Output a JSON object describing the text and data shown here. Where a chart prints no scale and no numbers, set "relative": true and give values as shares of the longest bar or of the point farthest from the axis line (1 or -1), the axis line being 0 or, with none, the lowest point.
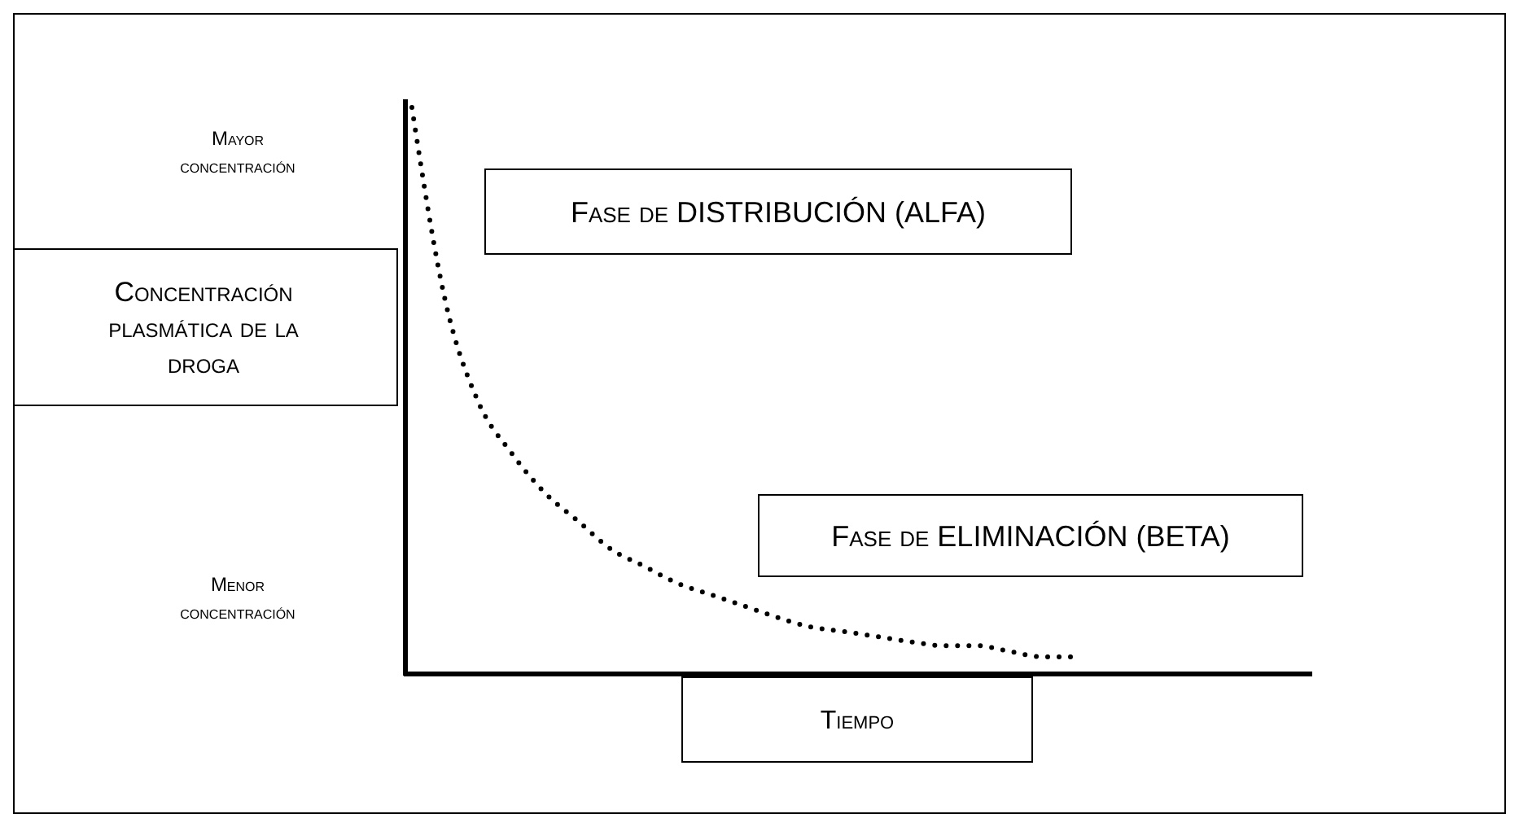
{
  "chart_data": {
    "type": "line",
    "relative": true,
    "xlabel": "Tiempo",
    "ylabel": "Concentración plasmática de la droga",
    "categories": [
      null,
      null,
      null,
      null,
      null,
      null,
      null,
      null,
      null,
      null,
      null,
      null,
      null,
      null,
      null,
      null,
      null,
      null,
      null,
      null,
      null
    ],
    "series": [
      {
        "color": "#000000",
        "values": [
          1.0,
          0.66,
          0.48,
          0.39,
          0.32,
          0.27,
          0.22,
          0.19,
          0.16,
          0.14,
          0.12,
          0.1,
          0.083,
          0.075,
          0.066,
          0.057,
          0.05,
          0.05,
          0.04,
          0.03,
          0.03
        ]
      }
    ],
    "line_style": "dotted",
    "marker": "none",
    "annotations": [
      "Mayor concentración",
      "Menor concentración",
      "Fase de DISTRIBUCIÓN (ALFA)",
      "Fase de ELIMINACIÓN (BETA)"
    ]
  }
}
